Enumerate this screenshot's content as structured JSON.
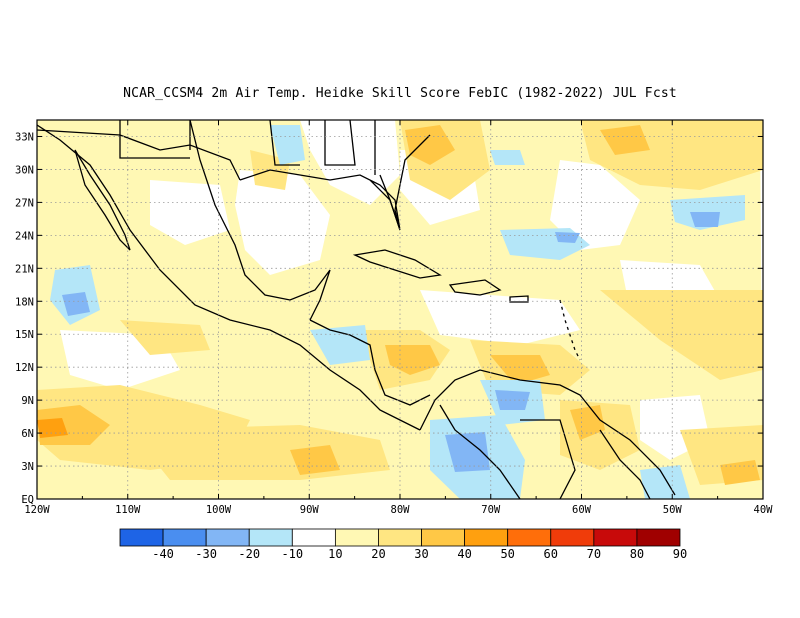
{
  "title": "NCAR_CCSM4  2m Air Temp. Heidke Skill Score FebIC (1982-2022) JUL Fcst",
  "map": {
    "lon_ticks": [
      "120W",
      "110W",
      "100W",
      "90W",
      "80W",
      "70W",
      "60W",
      "50W",
      "40W"
    ],
    "lat_ticks": [
      "EQ",
      "3N",
      "6N",
      "9N",
      "12N",
      "15N",
      "18N",
      "21N",
      "24N",
      "27N",
      "30N",
      "33N"
    ],
    "lon_range": [
      -120,
      -40
    ],
    "lat_range": [
      0,
      34.5
    ],
    "grid": "dotted"
  },
  "colorbar": {
    "labels": [
      "-40",
      "-30",
      "-20",
      "-10",
      "10",
      "20",
      "30",
      "40",
      "50",
      "60",
      "70",
      "80",
      "90"
    ],
    "colors": [
      "#1e64e6",
      "#4a8ef0",
      "#82b6f5",
      "#b4e6f8",
      "#ffffff",
      "#fff8b4",
      "#ffe682",
      "#ffc846",
      "#ffa00f",
      "#ff6e0a",
      "#f03c0a",
      "#c80a0a",
      "#a00000"
    ]
  }
}
